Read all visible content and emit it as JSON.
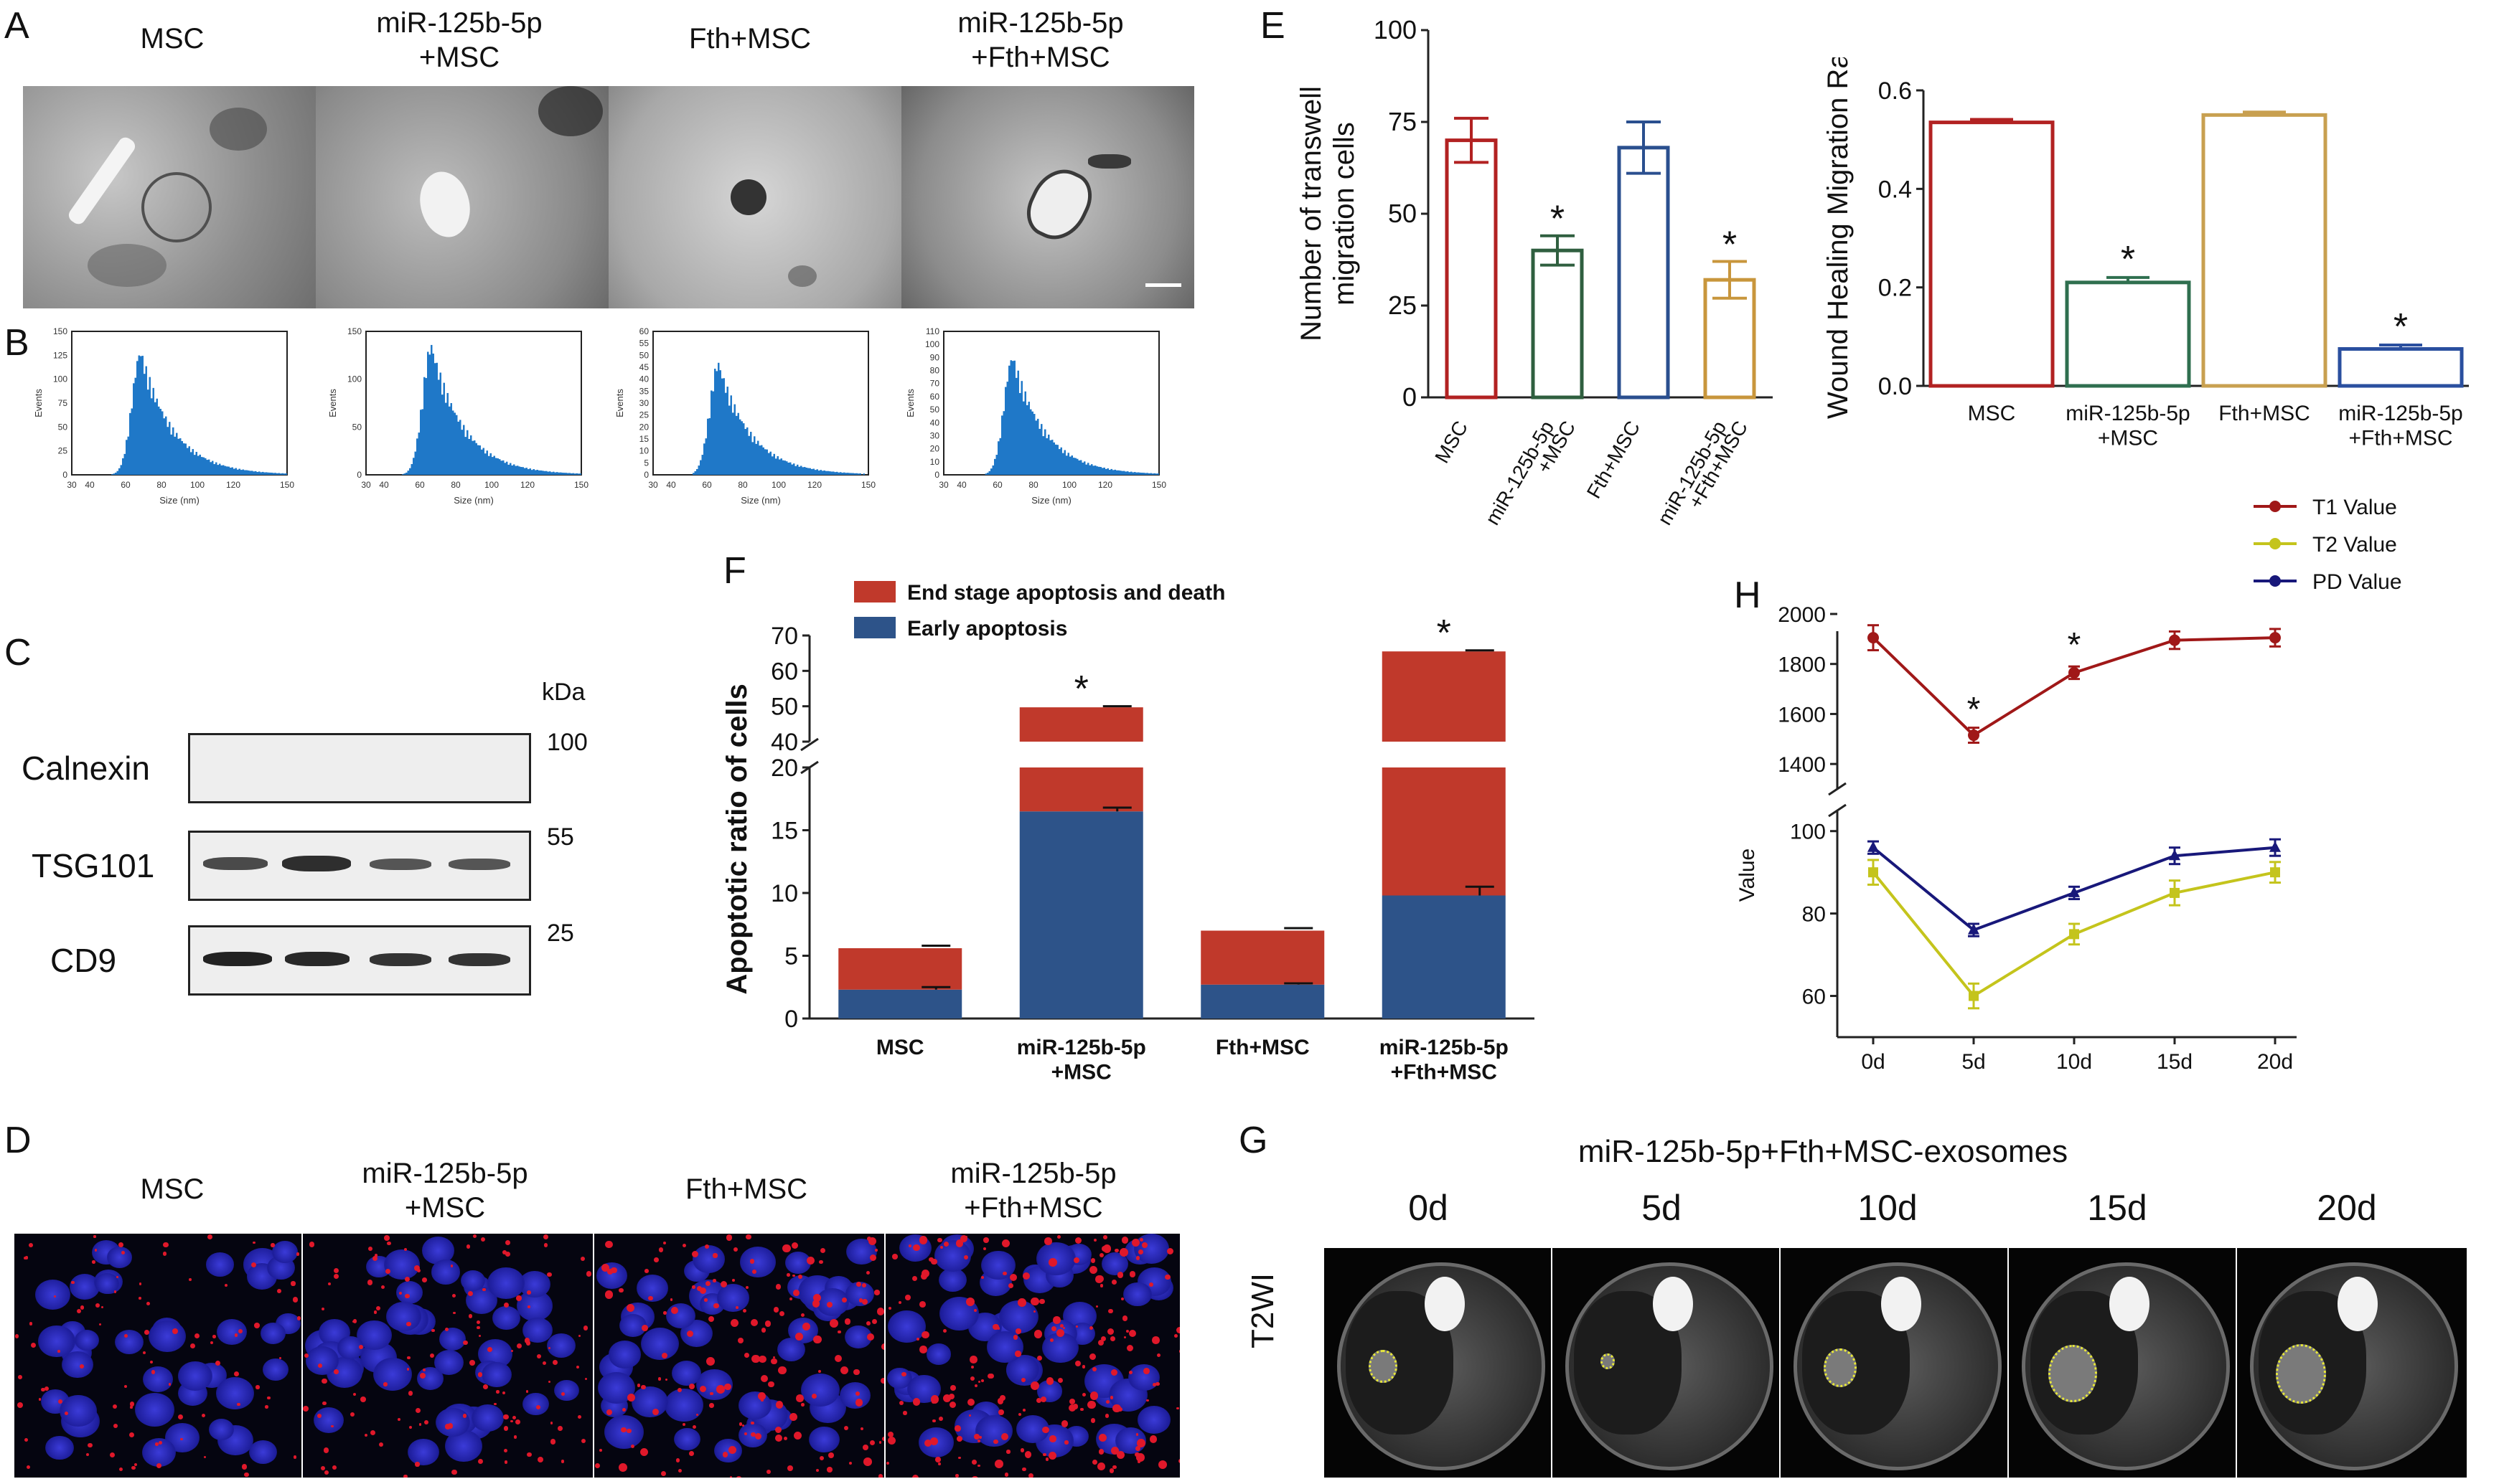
{
  "panel_letters": {
    "a": "A",
    "b": "B",
    "c": "C",
    "d": "D",
    "e": "E",
    "f": "F",
    "g": "G",
    "h": "H"
  },
  "groups": [
    "MSC",
    "miR-125b-5p\n+MSC",
    "Fth+MSC",
    "miR-125b-5p\n+Fth+MSC"
  ],
  "histograms": {
    "xlabel": "Size (nm)",
    "ylabel": "Events",
    "xticks": [
      "30",
      "40",
      "60",
      "80",
      "100",
      "120",
      "150"
    ],
    "panels": [
      {
        "yticks": [
          "150",
          "125",
          "100",
          "75",
          "50",
          "25",
          "0"
        ],
        "ymax": 150,
        "peak": 135,
        "mode": 68
      },
      {
        "yticks": [
          "150",
          "100",
          "50",
          "0"
        ],
        "ymax": 150,
        "peak": 142,
        "mode": 66
      },
      {
        "yticks": [
          "60",
          "55",
          "50",
          "45",
          "40",
          "35",
          "30",
          "25",
          "20",
          "15",
          "10",
          "5",
          "0"
        ],
        "ymax": 60,
        "peak": 49,
        "mode": 66
      },
      {
        "yticks": [
          "110",
          "100",
          "90",
          "80",
          "70",
          "60",
          "50",
          "40",
          "30",
          "20",
          "10",
          "0"
        ],
        "ymax": 110,
        "peak": 95,
        "mode": 68
      }
    ]
  },
  "western": {
    "unit": "kDa",
    "rows": [
      {
        "name": "Calnexin",
        "marker": "100",
        "intensity": [
          0,
          0,
          0,
          0
        ]
      },
      {
        "name": "TSG101",
        "marker": "55",
        "intensity": [
          0.7,
          0.8,
          0.6,
          0.6
        ]
      },
      {
        "name": "CD9",
        "marker": "25",
        "intensity": [
          0.9,
          0.85,
          0.8,
          0.8
        ]
      }
    ]
  },
  "mri": {
    "title": "miR-125b-5p+Fth+MSC-exosomes",
    "side_label": "T2WI",
    "days": [
      "0d",
      "5d",
      "10d",
      "15d",
      "20d"
    ]
  },
  "chart_data": [
    {
      "panel": "E-left",
      "type": "bar",
      "categories": [
        "MSC",
        "miR-125b-5p\n+MSC",
        "Fth+MSC",
        "miR-125b-5p\n+Fth+MSC"
      ],
      "values": [
        70,
        40,
        68,
        32
      ],
      "errors": [
        6,
        4,
        7,
        5
      ],
      "significant": [
        false,
        true,
        false,
        true
      ],
      "colors": [
        "#b22222",
        "#2f5f3f",
        "#2a4f8f",
        "#c8963c"
      ],
      "ylabel": "Number of transwell\nmigration cells",
      "ylim": [
        0,
        100
      ],
      "yticks": [
        "0",
        "25",
        "50",
        "75",
        "100"
      ]
    },
    {
      "panel": "E-right",
      "type": "bar",
      "categories": [
        "MSC",
        "miR-125b-5p\n+MSC",
        "Fth+MSC",
        "miR-125b-5p\n+Fth+MSC"
      ],
      "values": [
        0.535,
        0.21,
        0.55,
        0.075
      ],
      "errors": [
        0.006,
        0.01,
        0.006,
        0.008
      ],
      "significant": [
        false,
        true,
        false,
        true
      ],
      "colors": [
        "#b22222",
        "#2f6f4f",
        "#c8a050",
        "#2a4f9f"
      ],
      "ylabel": "Wound Healing Migration Rate",
      "ylim": [
        0,
        0.6
      ],
      "yticks": [
        "0.0",
        "0.2",
        "0.4",
        "0.6"
      ]
    },
    {
      "panel": "F",
      "type": "bar",
      "stacked": true,
      "categories": [
        "MSC",
        "miR-125b-5p\n+MSC",
        "Fth+MSC",
        "miR-125b-5p\n+Fth+MSC"
      ],
      "series": [
        {
          "name": "Early apoptosis",
          "color": "#2d5389",
          "values": [
            2.3,
            16.5,
            2.7,
            9.8
          ],
          "errors": [
            0.2,
            0.3,
            0.1,
            0.7
          ]
        },
        {
          "name": "End stage apoptosis and death",
          "color": "#c0392b",
          "values": [
            3.3,
            33.2,
            4.3,
            55.7
          ],
          "errors": [
            0.2,
            0.3,
            0.2,
            0.3
          ]
        }
      ],
      "significant": [
        false,
        true,
        false,
        true
      ],
      "ylabel": "Apoptotic ratio of cells",
      "yticks_lower": [
        "0",
        "5",
        "10",
        "15",
        "20"
      ],
      "yticks_upper": [
        "40",
        "50",
        "60",
        "70"
      ]
    },
    {
      "panel": "H",
      "type": "line",
      "x": [
        "0d",
        "5d",
        "10d",
        "15d",
        "20d"
      ],
      "series": [
        {
          "name": "T1 Value",
          "color": "#a01818",
          "marker": "circle",
          "values": [
            1905,
            1515,
            1765,
            1895,
            1905
          ],
          "errors": [
            50,
            30,
            25,
            35,
            35
          ],
          "significant": [
            false,
            true,
            true,
            false,
            false
          ]
        },
        {
          "name": "T2 Value",
          "color": "#c4c41c",
          "marker": "square",
          "values": [
            90,
            60,
            75,
            85,
            90
          ],
          "errors": [
            3,
            3,
            2.5,
            3,
            2.5
          ]
        },
        {
          "name": "PD Value",
          "color": "#18187a",
          "marker": "triangle",
          "values": [
            96,
            76,
            85,
            94,
            96
          ],
          "errors": [
            1.5,
            1.5,
            1.5,
            2,
            2
          ]
        }
      ],
      "ylabel": "Value",
      "yticks_upper": [
        "1400",
        "1600",
        "1800",
        "2000"
      ],
      "yticks_lower": [
        "60",
        "80",
        "100"
      ],
      "significance_mark": "*"
    }
  ]
}
